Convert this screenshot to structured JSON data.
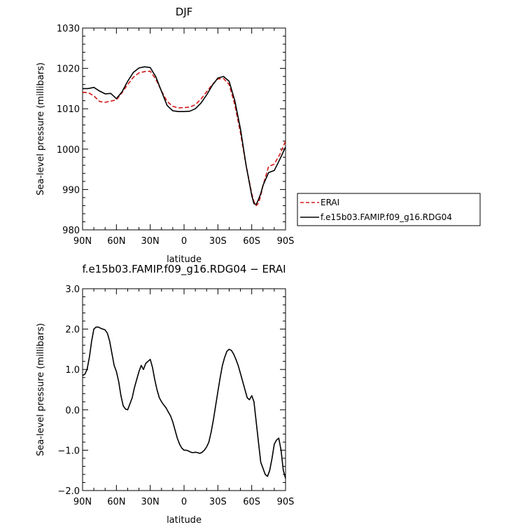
{
  "chart_data": [
    {
      "type": "line",
      "title": "DJF",
      "xlabel": "latitude",
      "ylabel": "Sea-level pressure (millibars)",
      "x_ticks": [
        "90N",
        "60N",
        "30N",
        "0",
        "30S",
        "60S",
        "90S"
      ],
      "y_ticks": [
        "980",
        "990",
        "1000",
        "1010",
        "1020",
        "1030"
      ],
      "xlim": [
        90,
        -90
      ],
      "ylim": [
        980,
        1030
      ],
      "grid": false,
      "legend_placement": "right",
      "series": [
        {
          "name": "ERAI",
          "color": "#d61a1a",
          "dash": true,
          "x": [
            90,
            85,
            80,
            75,
            70,
            65,
            60,
            55,
            50,
            45,
            40,
            35,
            30,
            25,
            20,
            15,
            10,
            5,
            0,
            -5,
            -10,
            -15,
            -20,
            -25,
            -30,
            -35,
            -40,
            -45,
            -50,
            -55,
            -60,
            -62,
            -64,
            -66,
            -68,
            -70,
            -75,
            -80,
            -85,
            -90
          ],
          "y": [
            1014.1,
            1014,
            1013.2,
            1011.8,
            1011.6,
            1011.9,
            1012.2,
            1014,
            1016,
            1017.8,
            1018.9,
            1019.2,
            1019.3,
            1017.3,
            1014.4,
            1011.8,
            1010.6,
            1010.2,
            1010.3,
            1010.4,
            1011,
            1012.4,
            1014.2,
            1016,
            1017.4,
            1017.5,
            1016,
            1011,
            1004,
            996,
            989,
            987,
            986,
            986.6,
            988.5,
            991,
            995.7,
            996.3,
            998.7,
            1002
          ]
        },
        {
          "name": "f.e15b03.FAMIP.f09_g16.RDG04",
          "color": "#000000",
          "dash": false,
          "x": [
            90,
            85,
            80,
            75,
            70,
            65,
            60,
            55,
            50,
            45,
            40,
            35,
            30,
            25,
            20,
            15,
            10,
            5,
            0,
            -5,
            -10,
            -15,
            -20,
            -25,
            -30,
            -35,
            -40,
            -45,
            -50,
            -55,
            -60,
            -62,
            -64,
            -66,
            -68,
            -70,
            -75,
            -80,
            -85,
            -90
          ],
          "y": [
            1015,
            1015,
            1015.3,
            1014.4,
            1013.7,
            1013.8,
            1012.5,
            1014.2,
            1016.8,
            1019,
            1020.1,
            1020.4,
            1020.2,
            1017.9,
            1014.3,
            1010.8,
            1009.5,
            1009.3,
            1009.3,
            1009.4,
            1010,
            1011.4,
            1013.4,
            1015.8,
            1017.6,
            1018,
            1016.8,
            1012,
            1005,
            996,
            988.5,
            986.5,
            986.3,
            987.5,
            989,
            991,
            994.2,
            994.7,
            997.5,
            1000.5
          ]
        }
      ]
    },
    {
      "type": "line",
      "title": "f.e15b03.FAMIP.f09_g16.RDG04 − ERAI",
      "xlabel": "latitude",
      "ylabel": "Sea-level pressure (millibars)",
      "x_ticks": [
        "90N",
        "60N",
        "30N",
        "0",
        "30S",
        "60S",
        "90S"
      ],
      "y_ticks": [
        "−2.0",
        "−1.0",
        "0.0",
        "1.0",
        "2.0",
        "3.0"
      ],
      "xlim": [
        90,
        -90
      ],
      "ylim": [
        -2,
        3
      ],
      "grid": false,
      "series": [
        {
          "color": "#000000",
          "dash": false,
          "x": [
            90,
            88,
            86,
            84,
            82,
            80,
            78,
            76,
            74,
            72,
            70,
            68,
            66,
            64,
            62,
            60,
            58,
            56,
            54,
            52,
            50,
            48,
            46,
            44,
            42,
            40,
            38,
            36,
            34,
            32,
            30,
            28,
            26,
            24,
            22,
            20,
            18,
            16,
            14,
            12,
            10,
            8,
            6,
            4,
            2,
            0,
            -2,
            -4,
            -6,
            -8,
            -10,
            -12,
            -14,
            -16,
            -18,
            -20,
            -22,
            -24,
            -26,
            -28,
            -30,
            -32,
            -34,
            -36,
            -38,
            -40,
            -42,
            -44,
            -46,
            -48,
            -50,
            -52,
            -54,
            -56,
            -58,
            -60,
            -62,
            -64,
            -66,
            -68,
            -70,
            -72,
            -74,
            -76,
            -78,
            -80,
            -82,
            -84,
            -86,
            -88,
            -90
          ],
          "y": [
            0.85,
            0.88,
            1.0,
            1.3,
            1.7,
            2.0,
            2.05,
            2.05,
            2.02,
            2.0,
            1.98,
            1.9,
            1.7,
            1.4,
            1.1,
            0.95,
            0.7,
            0.35,
            0.1,
            0.02,
            0.0,
            0.15,
            0.3,
            0.55,
            0.75,
            0.95,
            1.1,
            1.0,
            1.15,
            1.2,
            1.25,
            1.05,
            0.75,
            0.5,
            0.3,
            0.2,
            0.12,
            0.05,
            -0.05,
            -0.15,
            -0.3,
            -0.5,
            -0.7,
            -0.85,
            -0.95,
            -1.0,
            -1.0,
            -1.02,
            -1.05,
            -1.06,
            -1.05,
            -1.06,
            -1.08,
            -1.05,
            -1.0,
            -0.92,
            -0.8,
            -0.55,
            -0.25,
            0.1,
            0.45,
            0.8,
            1.1,
            1.3,
            1.45,
            1.5,
            1.47,
            1.38,
            1.25,
            1.1,
            0.9,
            0.7,
            0.5,
            0.3,
            0.25,
            0.35,
            0.2,
            -0.3,
            -0.8,
            -1.3,
            -1.45,
            -1.6,
            -1.65,
            -1.5,
            -1.2,
            -0.85,
            -0.75,
            -0.7,
            -1.0,
            -1.5,
            -1.7
          ]
        }
      ]
    }
  ]
}
